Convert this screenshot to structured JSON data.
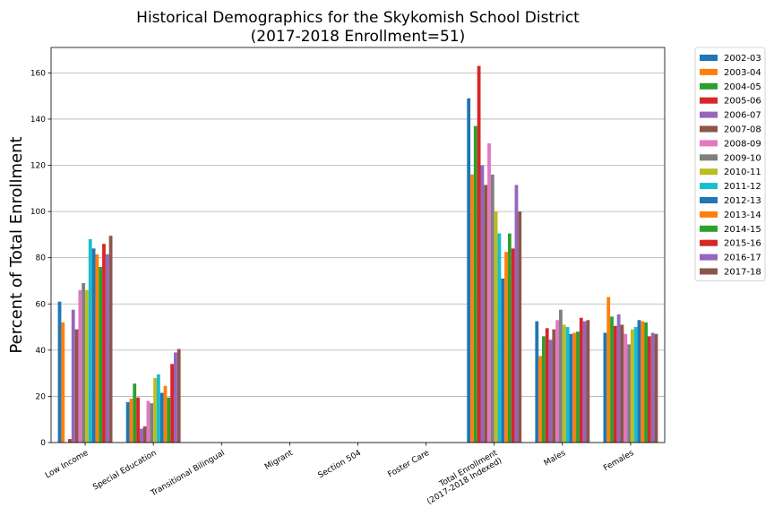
{
  "chart_data": {
    "type": "bar",
    "title": [
      "Historical Demographics for the Skykomish School District",
      "(2017-2018 Enrollment=51)"
    ],
    "xlabel": "",
    "ylabel": "Percent of Total Enrollment",
    "ylim": [
      0,
      171
    ],
    "yticks": [
      0,
      20,
      40,
      60,
      80,
      100,
      120,
      140,
      160
    ],
    "grid": "y",
    "legend_position": "outside-right",
    "categories": [
      "Low Income",
      "Special Education",
      "Transitional Bilingual",
      "Migrant",
      "Section 504",
      "Foster Care",
      "Total Enrollment\n(2017-2018 Indexed)",
      "Males",
      "Females"
    ],
    "series": [
      {
        "name": "2002-03",
        "color": "#1f77b4",
        "values": [
          61,
          17.5,
          0,
          0,
          0,
          0,
          149,
          52.5,
          47.5
        ]
      },
      {
        "name": "2003-04",
        "color": "#ff7f0e",
        "values": [
          52,
          19,
          0,
          0,
          0,
          0,
          116,
          37.5,
          63
        ]
      },
      {
        "name": "2004-05",
        "color": "#2ca02c",
        "values": [
          0,
          25.5,
          0,
          0,
          0,
          0,
          137,
          46,
          54.5
        ]
      },
      {
        "name": "2005-06",
        "color": "#d62728",
        "values": [
          1.5,
          19.5,
          0,
          0,
          0,
          0,
          163,
          49.5,
          50.5
        ]
      },
      {
        "name": "2006-07",
        "color": "#9467bd",
        "values": [
          57.5,
          6,
          0,
          0,
          0,
          0,
          120,
          44.5,
          55.5
        ]
      },
      {
        "name": "2007-08",
        "color": "#8c564b",
        "values": [
          49,
          7,
          0,
          0,
          0,
          0,
          111.5,
          49,
          51
        ]
      },
      {
        "name": "2008-09",
        "color": "#e377c2",
        "values": [
          66,
          18,
          0,
          0,
          0,
          0,
          129.5,
          53,
          47
        ]
      },
      {
        "name": "2009-10",
        "color": "#7f7f7f",
        "values": [
          69,
          17,
          0,
          0,
          0,
          0,
          116,
          57.5,
          42.5
        ]
      },
      {
        "name": "2010-11",
        "color": "#bcbd22",
        "values": [
          66,
          28,
          0,
          0,
          0,
          0,
          100,
          51,
          49
        ]
      },
      {
        "name": "2011-12",
        "color": "#17becf",
        "values": [
          88,
          29.5,
          0,
          0,
          0,
          0,
          90.5,
          50,
          50
        ]
      },
      {
        "name": "2012-13",
        "color": "#1f77b4",
        "values": [
          84,
          21.5,
          0,
          0,
          0,
          0,
          71,
          47,
          53
        ]
      },
      {
        "name": "2013-14",
        "color": "#ff7f0e",
        "values": [
          81.5,
          24.5,
          0,
          0,
          0,
          0,
          82.5,
          47.5,
          52.5
        ]
      },
      {
        "name": "2014-15",
        "color": "#2ca02c",
        "values": [
          76,
          19.5,
          0,
          0,
          0,
          0,
          90.5,
          48,
          52
        ]
      },
      {
        "name": "2015-16",
        "color": "#d62728",
        "values": [
          86,
          34,
          0,
          0,
          0,
          0,
          84,
          54,
          46
        ]
      },
      {
        "name": "2016-17",
        "color": "#9467bd",
        "values": [
          81.5,
          39,
          0,
          0,
          0,
          0,
          111.5,
          52.5,
          47.5
        ]
      },
      {
        "name": "2017-18",
        "color": "#8c564b",
        "values": [
          89.5,
          40.5,
          0,
          0,
          0,
          0,
          100,
          53,
          47
        ]
      }
    ]
  }
}
